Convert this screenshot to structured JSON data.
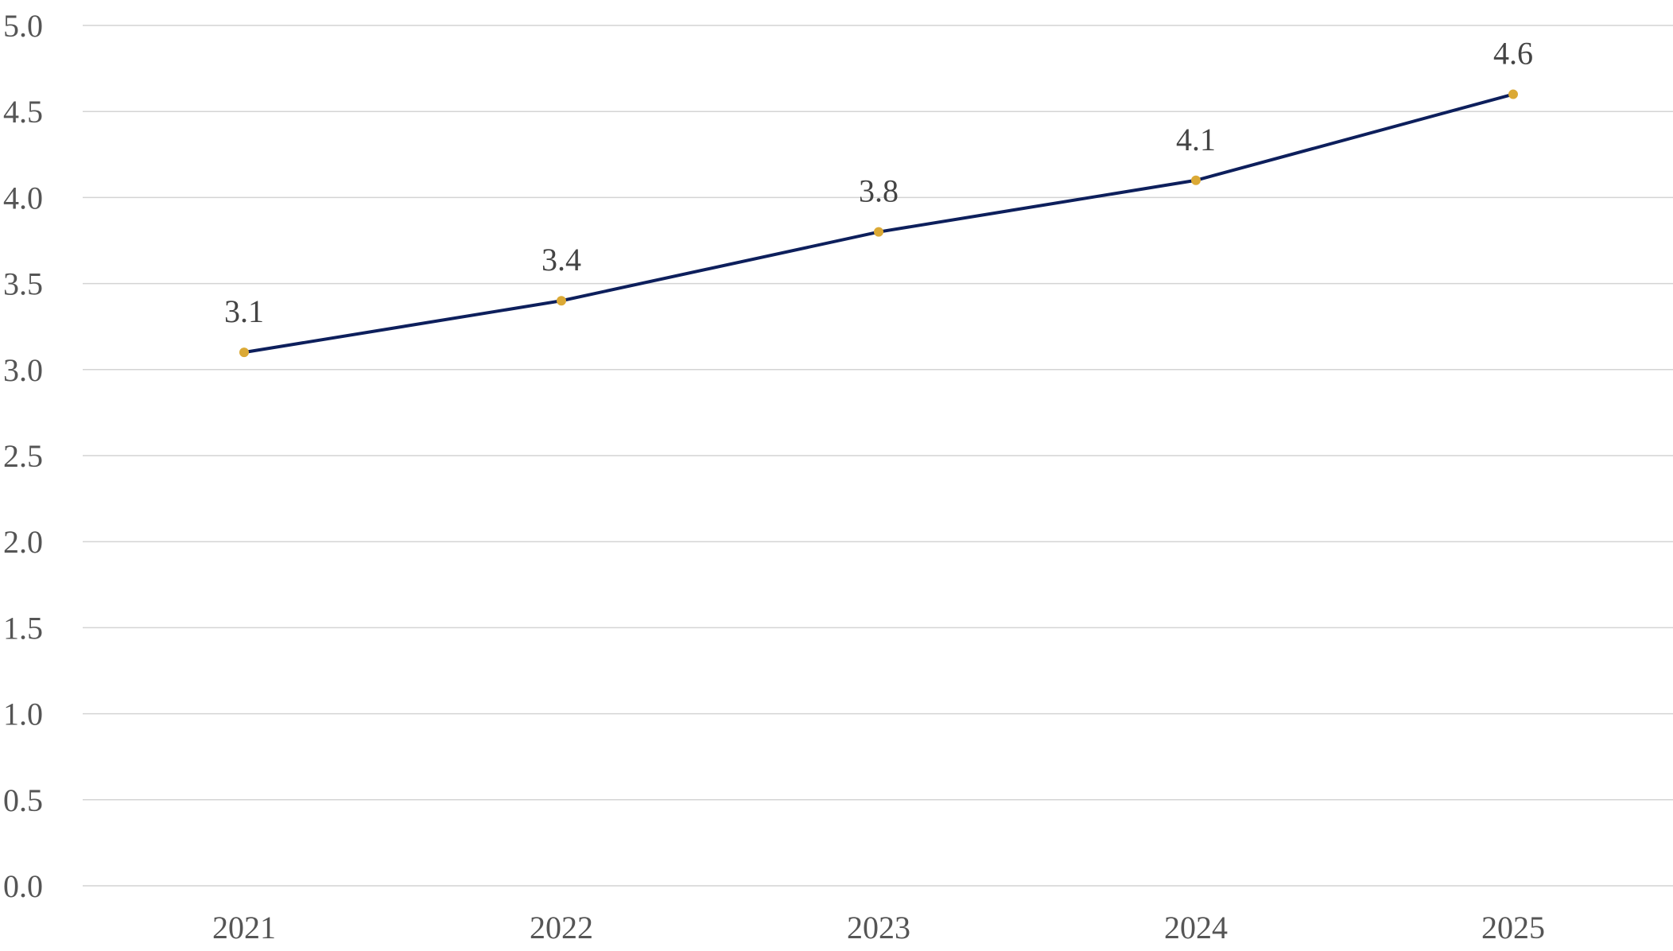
{
  "chart_data": {
    "type": "line",
    "title": "",
    "xlabel": "",
    "ylabel": "",
    "categories": [
      "2021",
      "2022",
      "2023",
      "2024",
      "2025"
    ],
    "series": [
      {
        "values": [
          3.1,
          3.4,
          3.8,
          4.1,
          4.6
        ],
        "data_labels": [
          "3.1",
          "3.4",
          "3.8",
          "4.1",
          "4.6"
        ],
        "color": "#0d1f5c",
        "marker_color": "#dba935"
      }
    ],
    "ylim": [
      0,
      5.0
    ],
    "yticks": [
      0.0,
      0.5,
      1.0,
      1.5,
      2.0,
      2.5,
      3.0,
      3.5,
      4.0,
      4.5,
      5.0
    ],
    "ytick_labels": [
      "0.0",
      "0.5",
      "1.0",
      "1.5",
      "2.0",
      "2.5",
      "3.0",
      "3.5",
      "4.0",
      "4.5",
      "5.0"
    ],
    "grid": true,
    "legend": "none"
  }
}
